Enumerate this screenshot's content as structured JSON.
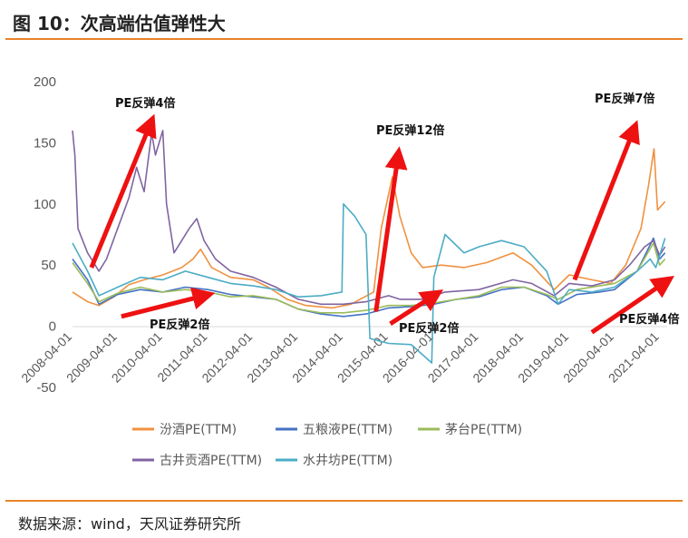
{
  "header": {
    "title": "图 10：次高端估值弹性大"
  },
  "source": "数据来源：wind，天风证券研究所",
  "colors": {
    "rule": "#e8832a",
    "arrow": "#ee1111"
  },
  "chart_data": {
    "type": "line",
    "title": "",
    "xlabel": "",
    "ylabel": "",
    "ylim": [
      -50,
      200
    ],
    "yticks": [
      -50,
      0,
      50,
      100,
      150,
      200
    ],
    "ytick_labels": [
      "-50",
      "0",
      "50",
      "100",
      "150",
      "200"
    ],
    "xticks": [
      "2008-04-01",
      "2009-04-01",
      "2010-04-01",
      "2011-04-01",
      "2012-04-01",
      "2013-04-01",
      "2014-04-01",
      "2015-04-01",
      "2016-04-01",
      "2017-04-01",
      "2018-04-01",
      "2019-04-01",
      "2020-04-01",
      "2021-04-01"
    ],
    "xlim": [
      "2008-04-01",
      "2021-06-01"
    ],
    "grid": false,
    "legend_position": "bottom",
    "series": [
      {
        "name": "汾酒PE(TTM)",
        "color": "#f0913f",
        "points": [
          [
            "2008-04-01",
            28
          ],
          [
            "2008-08-01",
            20
          ],
          [
            "2008-11-01",
            17
          ],
          [
            "2009-03-01",
            24
          ],
          [
            "2009-07-01",
            34
          ],
          [
            "2009-11-01",
            38
          ],
          [
            "2010-04-01",
            42
          ],
          [
            "2010-09-01",
            48
          ],
          [
            "2010-12-01",
            55
          ],
          [
            "2011-02-01",
            63
          ],
          [
            "2011-05-01",
            48
          ],
          [
            "2011-10-01",
            40
          ],
          [
            "2012-04-01",
            38
          ],
          [
            "2012-08-01",
            32
          ],
          [
            "2013-01-01",
            22
          ],
          [
            "2013-06-01",
            17
          ],
          [
            "2014-01-01",
            15
          ],
          [
            "2014-06-01",
            18
          ],
          [
            "2014-12-01",
            28
          ],
          [
            "2015-02-01",
            80
          ],
          [
            "2015-05-01",
            122
          ],
          [
            "2015-07-01",
            90
          ],
          [
            "2015-10-01",
            60
          ],
          [
            "2016-01-01",
            48
          ],
          [
            "2016-06-01",
            50
          ],
          [
            "2016-12-01",
            48
          ],
          [
            "2017-06-01",
            52
          ],
          [
            "2018-01-01",
            60
          ],
          [
            "2018-06-01",
            50
          ],
          [
            "2018-12-01",
            30
          ],
          [
            "2019-04-01",
            42
          ],
          [
            "2019-10-01",
            38
          ],
          [
            "2020-03-01",
            35
          ],
          [
            "2020-07-01",
            50
          ],
          [
            "2020-11-01",
            80
          ],
          [
            "2021-01-01",
            115
          ],
          [
            "2021-02-15",
            145
          ],
          [
            "2021-03-15",
            95
          ],
          [
            "2021-05-15",
            102
          ]
        ]
      },
      {
        "name": "五粮液PE(TTM)",
        "color": "#4472c4",
        "points": [
          [
            "2008-04-01",
            55
          ],
          [
            "2008-08-01",
            38
          ],
          [
            "2008-11-01",
            18
          ],
          [
            "2009-04-01",
            26
          ],
          [
            "2009-10-01",
            30
          ],
          [
            "2010-04-01",
            28
          ],
          [
            "2010-10-01",
            32
          ],
          [
            "2011-04-01",
            30
          ],
          [
            "2011-10-01",
            26
          ],
          [
            "2012-04-01",
            24
          ],
          [
            "2012-10-01",
            22
          ],
          [
            "2013-04-01",
            14
          ],
          [
            "2013-10-01",
            10
          ],
          [
            "2014-04-01",
            8
          ],
          [
            "2014-10-01",
            10
          ],
          [
            "2015-04-01",
            15
          ],
          [
            "2015-10-01",
            16
          ],
          [
            "2016-04-01",
            18
          ],
          [
            "2016-10-01",
            22
          ],
          [
            "2017-04-01",
            24
          ],
          [
            "2017-10-01",
            30
          ],
          [
            "2018-04-01",
            32
          ],
          [
            "2018-10-01",
            25
          ],
          [
            "2019-01-01",
            18
          ],
          [
            "2019-06-01",
            26
          ],
          [
            "2019-12-01",
            28
          ],
          [
            "2020-04-01",
            30
          ],
          [
            "2020-10-01",
            45
          ],
          [
            "2021-02-10",
            72
          ],
          [
            "2021-04-01",
            55
          ],
          [
            "2021-05-15",
            60
          ]
        ]
      },
      {
        "name": "茅台PE(TTM)",
        "color": "#9bbb59",
        "points": [
          [
            "2008-04-01",
            52
          ],
          [
            "2008-08-01",
            35
          ],
          [
            "2008-11-01",
            20
          ],
          [
            "2009-04-01",
            27
          ],
          [
            "2009-10-01",
            32
          ],
          [
            "2010-04-01",
            28
          ],
          [
            "2010-10-01",
            30
          ],
          [
            "2011-04-01",
            28
          ],
          [
            "2011-10-01",
            24
          ],
          [
            "2012-04-01",
            25
          ],
          [
            "2012-10-01",
            22
          ],
          [
            "2013-04-01",
            14
          ],
          [
            "2013-10-01",
            11
          ],
          [
            "2014-04-01",
            11
          ],
          [
            "2014-10-01",
            13
          ],
          [
            "2015-04-01",
            17
          ],
          [
            "2015-10-01",
            17
          ],
          [
            "2016-04-01",
            19
          ],
          [
            "2016-10-01",
            22
          ],
          [
            "2017-04-01",
            25
          ],
          [
            "2017-10-01",
            32
          ],
          [
            "2018-04-01",
            32
          ],
          [
            "2018-10-01",
            26
          ],
          [
            "2019-01-01",
            22
          ],
          [
            "2019-06-01",
            30
          ],
          [
            "2019-12-01",
            33
          ],
          [
            "2020-04-01",
            35
          ],
          [
            "2020-10-01",
            45
          ],
          [
            "2021-02-10",
            68
          ],
          [
            "2021-04-01",
            50
          ],
          [
            "2021-05-15",
            55
          ]
        ]
      },
      {
        "name": "古井贡酒PE(TTM)",
        "color": "#8064a2",
        "points": [
          [
            "2008-04-01",
            160
          ],
          [
            "2008-04-20",
            140
          ],
          [
            "2008-05-15",
            80
          ],
          [
            "2008-08-01",
            60
          ],
          [
            "2008-11-01",
            45
          ],
          [
            "2009-01-01",
            55
          ],
          [
            "2009-04-01",
            80
          ],
          [
            "2009-07-01",
            105
          ],
          [
            "2009-09-01",
            130
          ],
          [
            "2009-11-01",
            110
          ],
          [
            "2010-01-01",
            158
          ],
          [
            "2010-02-01",
            140
          ],
          [
            "2010-04-01",
            160
          ],
          [
            "2010-05-01",
            100
          ],
          [
            "2010-07-01",
            60
          ],
          [
            "2010-11-01",
            80
          ],
          [
            "2011-01-01",
            88
          ],
          [
            "2011-03-01",
            70
          ],
          [
            "2011-06-01",
            55
          ],
          [
            "2011-10-01",
            45
          ],
          [
            "2012-04-01",
            40
          ],
          [
            "2012-10-01",
            32
          ],
          [
            "2013-04-01",
            22
          ],
          [
            "2013-10-01",
            18
          ],
          [
            "2014-04-01",
            18
          ],
          [
            "2014-10-01",
            20
          ],
          [
            "2015-04-01",
            25
          ],
          [
            "2015-07-01",
            22
          ],
          [
            "2016-01-01",
            22
          ],
          [
            "2016-07-01",
            28
          ],
          [
            "2017-04-01",
            30
          ],
          [
            "2018-01-01",
            38
          ],
          [
            "2018-06-01",
            35
          ],
          [
            "2018-12-01",
            25
          ],
          [
            "2019-04-01",
            35
          ],
          [
            "2019-10-01",
            33
          ],
          [
            "2020-04-01",
            38
          ],
          [
            "2020-08-01",
            50
          ],
          [
            "2020-12-01",
            65
          ],
          [
            "2021-02-10",
            70
          ],
          [
            "2021-04-01",
            58
          ],
          [
            "2021-05-15",
            65
          ]
        ]
      },
      {
        "name": "水井坊PE(TTM)",
        "color": "#4bacc6",
        "points": [
          [
            "2008-04-01",
            68
          ],
          [
            "2008-08-01",
            45
          ],
          [
            "2008-11-01",
            25
          ],
          [
            "2009-04-01",
            32
          ],
          [
            "2009-10-01",
            40
          ],
          [
            "2010-04-01",
            38
          ],
          [
            "2010-10-01",
            45
          ],
          [
            "2011-04-01",
            40
          ],
          [
            "2011-10-01",
            35
          ],
          [
            "2012-04-01",
            33
          ],
          [
            "2012-10-01",
            30
          ],
          [
            "2013-04-01",
            24
          ],
          [
            "2013-10-01",
            25
          ],
          [
            "2014-03-20",
            28
          ],
          [
            "2014-04-01",
            100
          ],
          [
            "2014-07-01",
            90
          ],
          [
            "2014-10-01",
            75
          ],
          [
            "2014-11-01",
            -10
          ],
          [
            "2015-04-01",
            -14
          ],
          [
            "2015-10-01",
            -15
          ],
          [
            "2016-03-15",
            -30
          ],
          [
            "2016-04-01",
            40
          ],
          [
            "2016-07-01",
            75
          ],
          [
            "2016-12-01",
            60
          ],
          [
            "2017-04-01",
            65
          ],
          [
            "2017-10-01",
            70
          ],
          [
            "2018-04-01",
            65
          ],
          [
            "2018-10-01",
            45
          ],
          [
            "2019-01-01",
            18
          ],
          [
            "2019-04-01",
            30
          ],
          [
            "2019-10-01",
            28
          ],
          [
            "2020-04-01",
            32
          ],
          [
            "2020-10-01",
            45
          ],
          [
            "2021-01-15",
            55
          ],
          [
            "2021-03-01",
            48
          ],
          [
            "2021-05-15",
            72
          ]
        ]
      }
    ],
    "annotations": [
      {
        "text": "PE反弹4倍",
        "near": "2009-10-01"
      },
      {
        "text": "PE反弹2倍",
        "near": "2010-06-01"
      },
      {
        "text": "PE反弹12倍",
        "near": "2015-01-01"
      },
      {
        "text": "PE反弹2倍",
        "near": "2015-07-01"
      },
      {
        "text": "PE反弹7倍",
        "near": "2020-06-01"
      },
      {
        "text": "PE反弹4倍",
        "near": "2020-12-01"
      }
    ]
  }
}
